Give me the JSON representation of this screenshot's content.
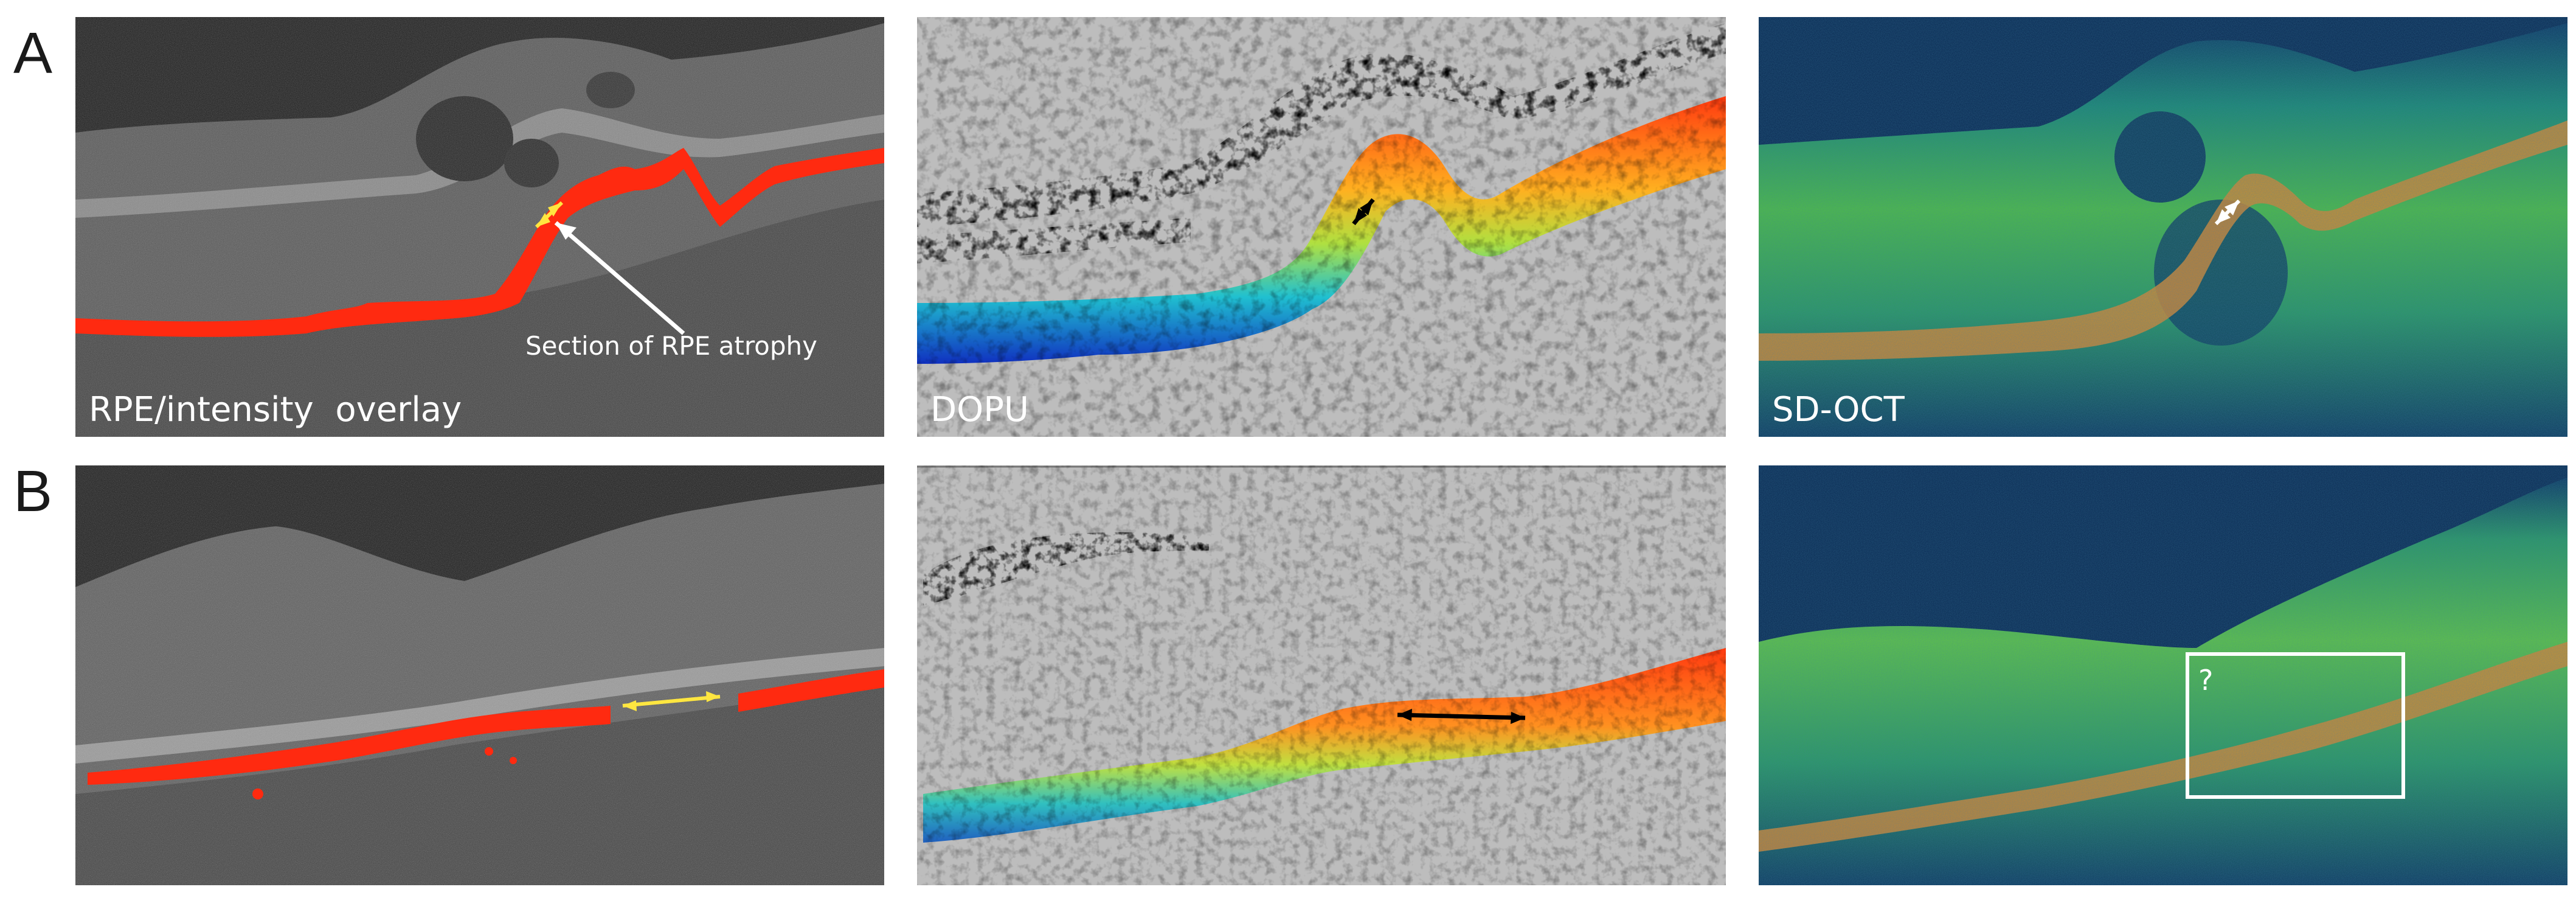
{
  "rows": [
    {
      "label": "A",
      "panels": [
        {
          "label": "RPE/intensity  overlay",
          "annotation": "Section of RPE atrophy"
        },
        {
          "label": "DOPU"
        },
        {
          "label": "SD-OCT"
        }
      ]
    },
    {
      "label": "B",
      "panels": [
        {
          "label": ""
        },
        {
          "label": ""
        },
        {
          "label": "",
          "box_annotation": "?"
        }
      ]
    }
  ],
  "colors": {
    "rpe_overlay": "#ff2a10",
    "dopu_background": "#bdbdbd",
    "oct_background": "#082850",
    "arrow_yellow": "#ffe640",
    "arrow_white": "#ffffff",
    "arrow_black": "#000000"
  }
}
